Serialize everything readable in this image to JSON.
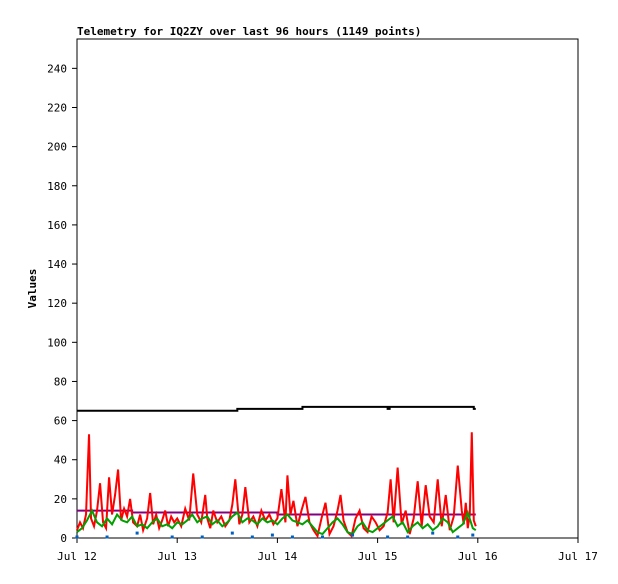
{
  "chart_data": {
    "type": "line",
    "title": "Telemetry for IQ2ZY over last 96 hours (1149 points)",
    "xlabel": "",
    "ylabel": "Values",
    "x_tick_labels": [
      "Jul 12",
      "Jul 13",
      "Jul 14",
      "Jul 15",
      "Jul 16",
      "Jul 17"
    ],
    "xlim": [
      0,
      5
    ],
    "y_ticks": [
      0,
      20,
      40,
      60,
      80,
      100,
      120,
      140,
      160,
      180,
      200,
      220,
      240
    ],
    "ylim": [
      0,
      255
    ],
    "grid": false,
    "legend": "none",
    "series": [
      {
        "color": "#000000",
        "style": "step",
        "x": [
          0.0,
          1.58,
          1.6,
          2.2,
          2.25,
          3.08,
          3.1,
          3.12,
          3.15,
          3.94,
          3.96,
          3.98
        ],
        "y": [
          65,
          65,
          66,
          66,
          67,
          67,
          66,
          67,
          67,
          67,
          66,
          66
        ]
      },
      {
        "color": "#800080",
        "style": "step",
        "x": [
          0.0,
          0.5,
          0.55,
          1.9,
          2.0,
          3.98
        ],
        "y": [
          14,
          14,
          13,
          13,
          12,
          12
        ]
      },
      {
        "color": "#ff0000",
        "style": "line",
        "x": [
          0.0,
          0.03,
          0.06,
          0.09,
          0.12,
          0.14,
          0.17,
          0.2,
          0.23,
          0.26,
          0.29,
          0.32,
          0.35,
          0.38,
          0.41,
          0.44,
          0.47,
          0.5,
          0.53,
          0.56,
          0.6,
          0.63,
          0.66,
          0.7,
          0.73,
          0.76,
          0.79,
          0.82,
          0.85,
          0.88,
          0.91,
          0.94,
          0.97,
          1.0,
          1.04,
          1.08,
          1.12,
          1.16,
          1.2,
          1.24,
          1.28,
          1.3,
          1.33,
          1.36,
          1.4,
          1.44,
          1.48,
          1.52,
          1.55,
          1.58,
          1.62,
          1.65,
          1.68,
          1.72,
          1.76,
          1.8,
          1.84,
          1.88,
          1.92,
          1.96,
          2.0,
          2.04,
          2.08,
          2.1,
          2.13,
          2.16,
          2.2,
          2.24,
          2.28,
          2.32,
          2.36,
          2.4,
          2.44,
          2.48,
          2.52,
          2.56,
          2.6,
          2.63,
          2.66,
          2.7,
          2.74,
          2.78,
          2.82,
          2.86,
          2.9,
          2.94,
          2.98,
          3.02,
          3.06,
          3.1,
          3.13,
          3.16,
          3.2,
          3.24,
          3.28,
          3.32,
          3.36,
          3.4,
          3.44,
          3.48,
          3.52,
          3.56,
          3.6,
          3.64,
          3.68,
          3.72,
          3.76,
          3.8,
          3.84,
          3.86,
          3.88,
          3.9,
          3.92,
          3.94,
          3.96,
          3.98
        ],
        "y": [
          4,
          8,
          5,
          12,
          53,
          10,
          6,
          14,
          28,
          8,
          5,
          31,
          12,
          22,
          35,
          9,
          15,
          11,
          20,
          8,
          6,
          12,
          4,
          10,
          23,
          7,
          12,
          5,
          9,
          14,
          6,
          11,
          8,
          10,
          6,
          15,
          9,
          33,
          12,
          8,
          22,
          10,
          5,
          14,
          8,
          11,
          6,
          9,
          17,
          30,
          7,
          12,
          26,
          8,
          11,
          6,
          14,
          9,
          12,
          7,
          10,
          25,
          8,
          32,
          12,
          19,
          6,
          14,
          21,
          8,
          4,
          1,
          10,
          18,
          2,
          6,
          14,
          22,
          9,
          3,
          1,
          10,
          14,
          5,
          3,
          11,
          8,
          4,
          6,
          13,
          30,
          8,
          36,
          7,
          14,
          2,
          10,
          29,
          6,
          27,
          11,
          8,
          30,
          6,
          22,
          4,
          11,
          37,
          14,
          7,
          18,
          5,
          12,
          54,
          9,
          6
        ],
        "y_note": ""
      },
      {
        "color": "#00a000",
        "style": "line",
        "x": [
          0.0,
          0.05,
          0.1,
          0.15,
          0.2,
          0.25,
          0.3,
          0.35,
          0.4,
          0.45,
          0.5,
          0.55,
          0.6,
          0.65,
          0.7,
          0.75,
          0.8,
          0.85,
          0.9,
          0.95,
          1.0,
          1.05,
          1.1,
          1.15,
          1.2,
          1.25,
          1.3,
          1.35,
          1.4,
          1.45,
          1.5,
          1.55,
          1.6,
          1.65,
          1.7,
          1.75,
          1.8,
          1.85,
          1.9,
          1.95,
          2.0,
          2.05,
          2.1,
          2.15,
          2.2,
          2.25,
          2.3,
          2.35,
          2.4,
          2.45,
          2.5,
          2.55,
          2.6,
          2.65,
          2.7,
          2.75,
          2.8,
          2.85,
          2.9,
          2.95,
          3.0,
          3.05,
          3.1,
          3.15,
          3.2,
          3.25,
          3.3,
          3.35,
          3.4,
          3.45,
          3.5,
          3.55,
          3.6,
          3.65,
          3.7,
          3.75,
          3.8,
          3.85,
          3.9,
          3.95,
          3.98
        ],
        "y": [
          3,
          5,
          9,
          14,
          8,
          6,
          10,
          7,
          12,
          9,
          8,
          11,
          6,
          7,
          5,
          8,
          10,
          6,
          7,
          5,
          8,
          7,
          9,
          12,
          8,
          10,
          11,
          7,
          9,
          6,
          8,
          11,
          13,
          8,
          10,
          9,
          7,
          10,
          8,
          9,
          7,
          10,
          12,
          9,
          8,
          7,
          9,
          6,
          3,
          2,
          5,
          8,
          10,
          7,
          3,
          2,
          6,
          8,
          4,
          3,
          5,
          7,
          9,
          11,
          6,
          8,
          3,
          6,
          8,
          5,
          7,
          4,
          6,
          10,
          8,
          3,
          5,
          7,
          13,
          5,
          4
        ]
      },
      {
        "color": "#0060c0",
        "style": "markers",
        "x": [
          0.0,
          0.3,
          0.6,
          0.95,
          1.25,
          1.55,
          1.75,
          1.95,
          2.15,
          2.45,
          2.75,
          3.1,
          3.3,
          3.55,
          3.8,
          3.95
        ],
        "y": [
          0,
          0,
          2,
          0,
          0,
          2,
          0,
          1,
          0,
          0,
          1,
          0,
          0,
          2,
          0,
          1
        ]
      }
    ]
  }
}
